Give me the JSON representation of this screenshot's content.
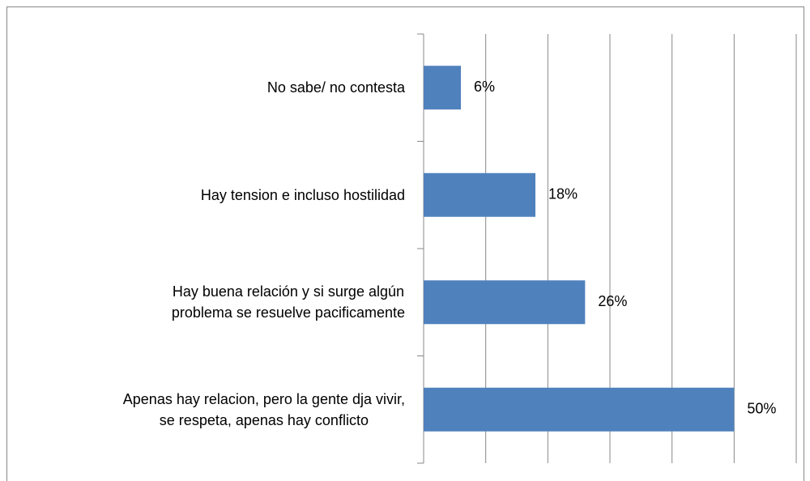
{
  "chart_data": {
    "type": "bar",
    "orientation": "horizontal",
    "categories": [
      "No sabe/ no contesta",
      "Hay tension e incluso hostilidad",
      "Hay buena relación y si surge algún \nproblema se resuelve pacificamente",
      "Apenas hay relacion, pero la gente dja vivir,\nse respeta, apenas hay conflicto"
    ],
    "values": [
      6,
      18,
      26,
      50
    ],
    "value_labels": [
      "6%",
      "18%",
      "26%",
      "50%"
    ],
    "color": "#4f81bd",
    "xlim": [
      0,
      60
    ],
    "xticks": [
      0,
      10,
      20,
      30,
      40,
      50,
      60
    ],
    "grid": true
  }
}
